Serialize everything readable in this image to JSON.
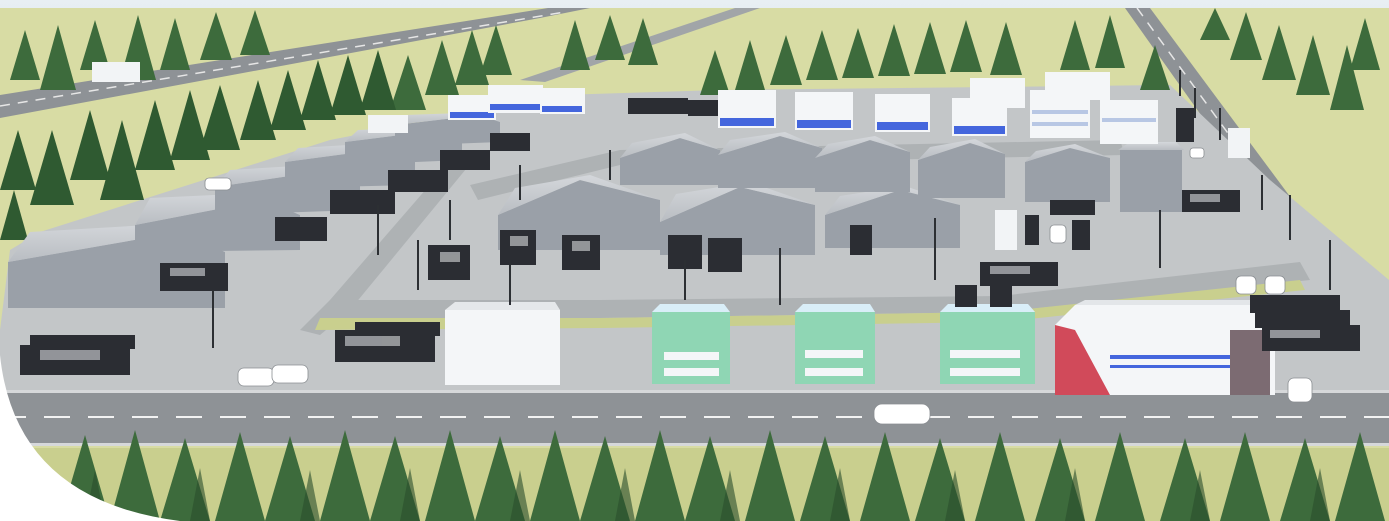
{
  "image": {
    "kind": "aerial-rendering",
    "subject": "industrial-logistics-park",
    "palette": {
      "sky": "#dfe9ef",
      "grass": "#d8dca4",
      "grass_shade": "#c9cf8e",
      "road": "#8e9296",
      "lot": "#c3c6c8",
      "lot_dark": "#aeb2b4",
      "warehouse_wall": "#9aa0a8",
      "warehouse_roof": "#c6cacf",
      "office_mint": "#8fd6b4",
      "office_white": "#f4f6f8",
      "accent_red": "#d14a5a",
      "accent_blue": "#4466dd",
      "tree": "#3d6b3c",
      "tree_dark": "#2a4d2c",
      "truck_trailer": "#2b2d33",
      "corner_mask": "#ffffff"
    }
  }
}
